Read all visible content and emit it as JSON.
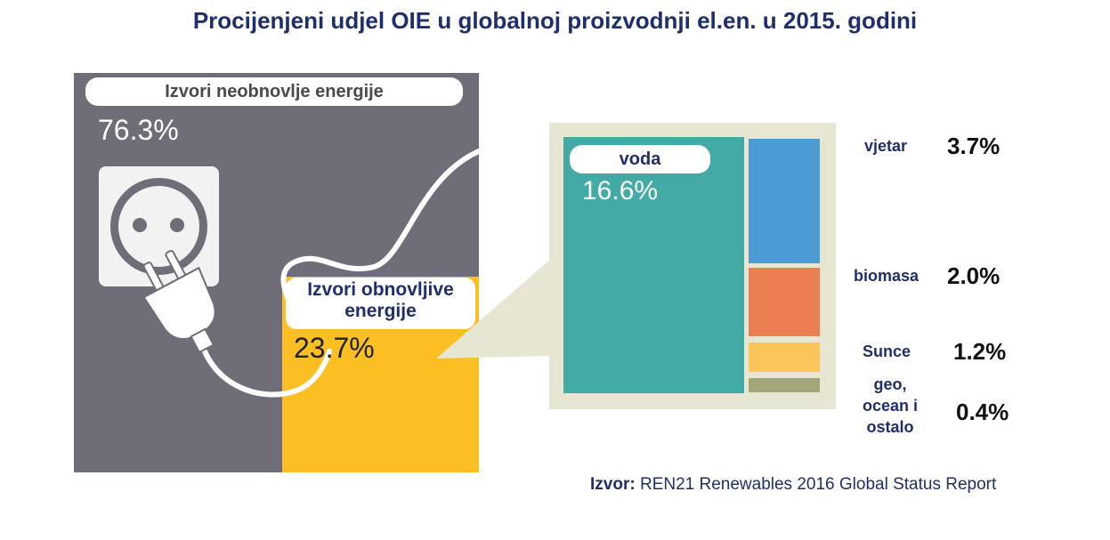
{
  "title": "Procijenjeni udjel OIE u globalnoj proizvodnji el.en. u 2015. godini",
  "nonrenewable": {
    "label": "Izvori neobnovlje energije",
    "value_text": "76.3%"
  },
  "renewable": {
    "label_line1": "Izvori obnovljive",
    "label_line2": "energije",
    "value_text": "23.7%"
  },
  "hydro": {
    "label": "voda",
    "value_text": "16.6%"
  },
  "legend": [
    {
      "label": "vjetar",
      "value_text": "3.7%"
    },
    {
      "label": "biomasa",
      "value_text": "2.0%"
    },
    {
      "label": "Sunce",
      "value_text": "1.2%"
    },
    {
      "label_lines": [
        "geo,",
        "ocean i",
        "ostalo"
      ],
      "value_text": "0.4%"
    }
  ],
  "source": {
    "prefix": "Izvor:",
    "text": "REN21 Renewables 2016 Global Status Report"
  },
  "chart_data": {
    "type": "treemap",
    "title": "Procijenjeni udjel OIE u globalnoj proizvodnji el.en. u 2015. godini",
    "unit": "%",
    "overall": [
      {
        "name": "Izvori neobnovlje energije",
        "value": 76.3,
        "color": "#6f6e78"
      },
      {
        "name": "Izvori obnovljive energije",
        "value": 23.7,
        "color": "#fbbf24"
      }
    ],
    "renewable_breakdown": [
      {
        "name": "voda",
        "value": 16.6,
        "color": "#44aaa5"
      },
      {
        "name": "vjetar",
        "value": 3.7,
        "color": "#4b9bd4"
      },
      {
        "name": "biomasa",
        "value": 2.0,
        "color": "#eb7f52"
      },
      {
        "name": "Sunce",
        "value": 1.2,
        "color": "#fcc55c"
      },
      {
        "name": "geo, ocean i ostalo",
        "value": 0.4,
        "color": "#a4a579"
      }
    ]
  }
}
